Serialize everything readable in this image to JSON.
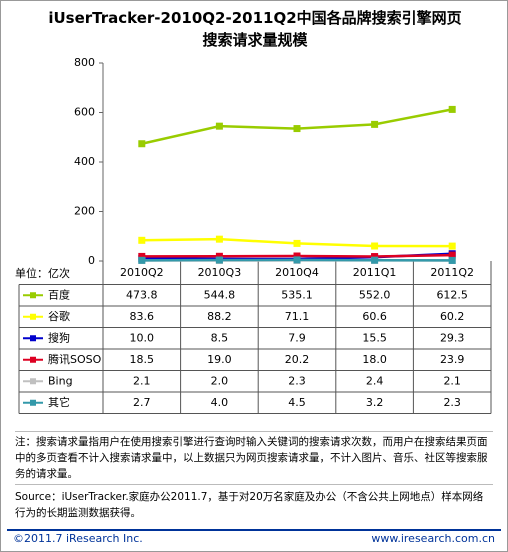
{
  "chart_data": {
    "type": "line",
    "title": "iUserTracker-2010Q2-2011Q2中国各品牌搜索引擎网页搜索请求量规模",
    "unit": "单位：亿次",
    "categories": [
      "2010Q2",
      "2010Q3",
      "2010Q4",
      "2011Q1",
      "2011Q2"
    ],
    "ylim": [
      0,
      800
    ],
    "yticks": [
      0,
      200,
      400,
      600,
      800
    ],
    "series": [
      {
        "name": "百度",
        "color": "#99cc00",
        "values": [
          473.8,
          544.8,
          535.1,
          552.0,
          612.5
        ],
        "value_labels": [
          "473.8",
          "544.8",
          "535.1",
          "552.0",
          "612.5"
        ]
      },
      {
        "name": "谷歌",
        "color": "#ffff00",
        "values": [
          83.6,
          88.2,
          71.1,
          60.6,
          60.2
        ],
        "value_labels": [
          "83.6",
          "88.2",
          "71.1",
          "60.6",
          "60.2"
        ]
      },
      {
        "name": "搜狗",
        "color": "#0000cc",
        "values": [
          10.0,
          8.5,
          7.9,
          15.5,
          29.3
        ],
        "value_labels": [
          "10.0",
          "8.5",
          "7.9",
          "15.5",
          "29.3"
        ]
      },
      {
        "name": "腾讯SOSO",
        "color": "#dd0022",
        "values": [
          18.5,
          19.0,
          20.2,
          18.0,
          23.9
        ],
        "value_labels": [
          "18.5",
          "19.0",
          "20.2",
          "18.0",
          "23.9"
        ]
      },
      {
        "name": "Bing",
        "color": "#c0c0c0",
        "values": [
          2.1,
          2.0,
          2.3,
          2.4,
          2.1
        ],
        "value_labels": [
          "2.1",
          "2.0",
          "2.3",
          "2.4",
          "2.1"
        ]
      },
      {
        "name": "其它",
        "color": "#3399aa",
        "values": [
          2.7,
          4.0,
          4.5,
          3.2,
          2.3
        ],
        "value_labels": [
          "2.7",
          "4.0",
          "4.5",
          "3.2",
          "2.3"
        ]
      }
    ],
    "note": "注：搜索请求量指用户在使用搜索引擎进行查询时输入关键词的搜索请求次数，而用户在搜索结果页面中的多页查看不计入搜索请求量中，以上数据只为网页搜索请求量，不计入图片、音乐、社区等搜索服务的请求量。",
    "source": "Source：iUserTracker.家庭办公2011.7，基于对20万名家庭及办公（不含公共上网地点）样本网络行为的长期监测数据获得。",
    "copyright": "©2011.7 iResearch Inc.",
    "website": "www.iresearch.com.cn"
  }
}
